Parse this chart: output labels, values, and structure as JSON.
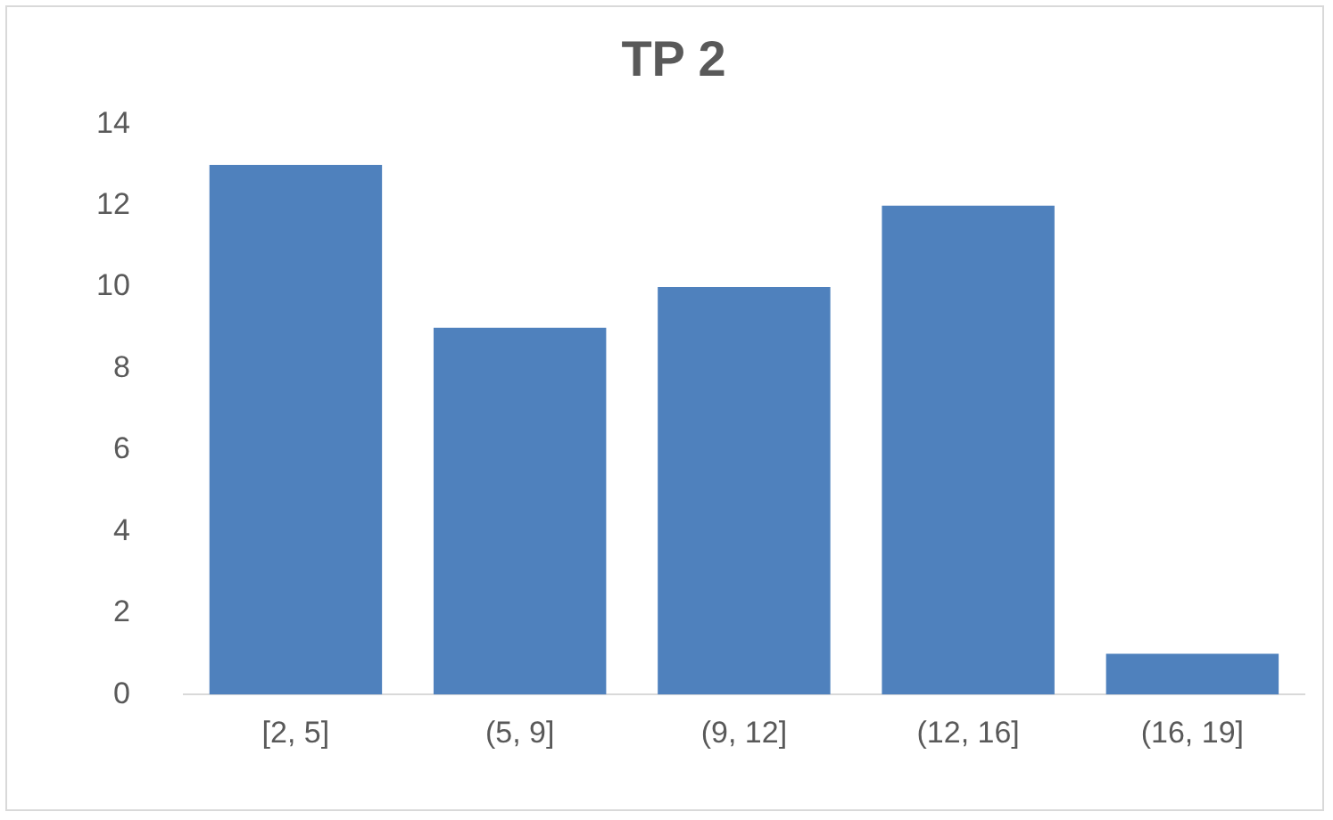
{
  "chart_data": {
    "type": "bar",
    "title": "TP 2",
    "categories": [
      "[2, 5]",
      "(5, 9]",
      "(9, 12]",
      "(12, 16]",
      "(16, 19]"
    ],
    "values": [
      13,
      9,
      10,
      12,
      1
    ],
    "color": "#4f81bd",
    "ylim": [
      0,
      14
    ],
    "yticks": [
      0,
      2,
      4,
      6,
      8,
      10,
      12,
      14
    ],
    "grid": false,
    "legend": false
  }
}
